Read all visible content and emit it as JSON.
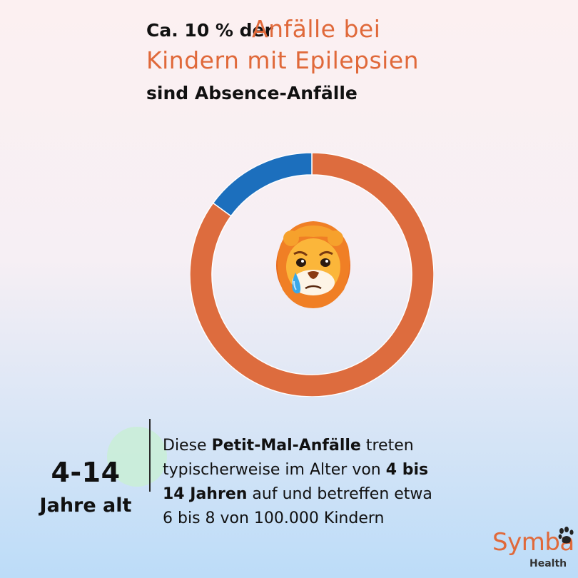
{
  "title": {
    "line1_prefix": "Ca. 10 % der",
    "line1_highlight": "Anfälle bei",
    "line2_highlight": "Kindern mit Epilepsien",
    "line3": "sind Absence-Anfälle"
  },
  "chart_data": {
    "type": "pie",
    "donut": true,
    "slices": [
      {
        "value": 85,
        "color": "#dd6c3e"
      },
      {
        "value": 15,
        "color": "#1c6fbd"
      }
    ]
  },
  "center_icon": "crying-lion-emoji",
  "age": {
    "number": "4-14",
    "label": "Jahre alt"
  },
  "description": {
    "p1": "Diese ",
    "b1": "Petit-Mal-Anfälle",
    "p2": " treten",
    "p3": "typischerweise im Alter von ",
    "b2": "4 bis",
    "b3": "14 Jahren",
    "p4": " auf und betreffen etwa",
    "p5": "6 bis 8 von 100.000 Kindern"
  },
  "logo": {
    "name": "Symba",
    "sub": "Health",
    "icon": "paw-icon"
  },
  "colors": {
    "accent": "#e0693a",
    "blue": "#1c6fbd",
    "orange": "#dd6c3e"
  }
}
